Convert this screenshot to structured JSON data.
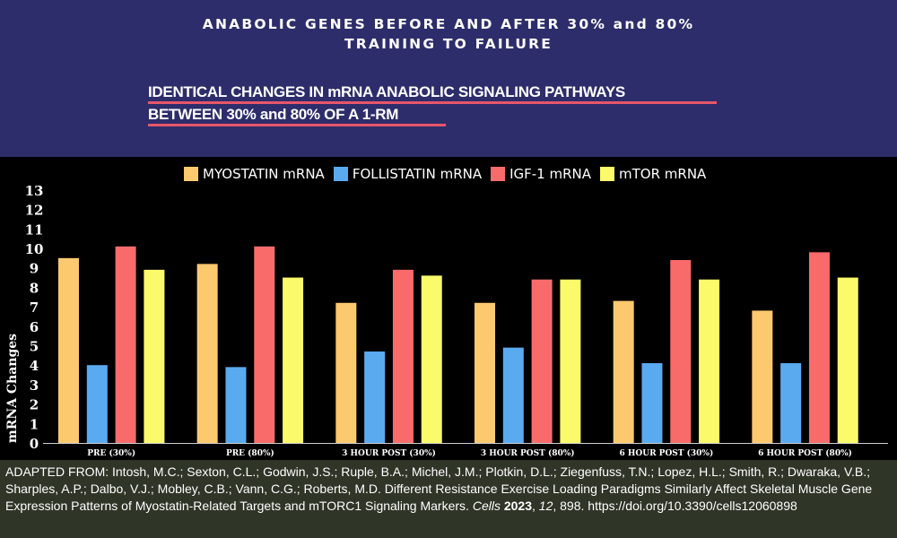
{
  "header": {
    "title_line1": "ANABOLIC GENES BEFORE AND AFTER 30% and 80%",
    "title_line2": "TRAINING TO FAILURE",
    "subtitle_line1": "IDENTICAL CHANGES IN mRNA ANABOLIC SIGNALING PATHWAYS",
    "subtitle_line2": "BETWEEN 30% and 80% OF A 1-RM"
  },
  "chart_data": {
    "type": "bar",
    "ylabel": "mRNA Changes",
    "ylim": [
      0,
      13
    ],
    "yticks": [
      0,
      1,
      2,
      3,
      4,
      5,
      6,
      7,
      8,
      9,
      10,
      11,
      12,
      13
    ],
    "categories": [
      "PRE (30%)",
      "PRE (80%)",
      "3 HOUR POST (30%)",
      "3 HOUR POST (80%)",
      "6 HOUR POST (30%)",
      "6 HOUR POST (80%)"
    ],
    "series": [
      {
        "name": "MYOSTATIN mRNA",
        "color": "#fdc96e",
        "values": [
          9.5,
          9.2,
          7.2,
          7.2,
          7.3,
          6.8
        ]
      },
      {
        "name": "FOLLISTATIN mRNA",
        "color": "#5aaaf0",
        "values": [
          4.0,
          3.9,
          4.7,
          4.9,
          4.1,
          4.1
        ]
      },
      {
        "name": "IGF-1 mRNA",
        "color": "#f96b6b",
        "values": [
          10.1,
          10.1,
          8.9,
          8.4,
          9.4,
          9.8
        ]
      },
      {
        "name": "mTOR mRNA",
        "color": "#fafa6a",
        "values": [
          8.9,
          8.5,
          8.6,
          8.4,
          8.4,
          8.5
        ]
      }
    ],
    "legend_position": "top",
    "grid": false
  },
  "footer": {
    "citation_prefix": "ADAPTED FROM:  Intosh, M.C.; Sexton, C.L.; Godwin, J.S.; Ruple, B.A.; Michel, J.M.; Plotkin, D.L.; Ziegenfuss, T.N.; Lopez, H.L.; Smith, R.; Dwaraka, V.B.; Sharples, A.P.; Dalbo, V.J.; Mobley, C.B.; Vann, C.G.; Roberts, M.D. Different Resistance Exercise Loading Paradigms Similarly Affect Skeletal Muscle Gene Expression Patterns of Myostatin-Related Targets and mTORC1 Signaling Markers. ",
    "journal": "Cells",
    "space1": " ",
    "year": "2023",
    "comma1": ", ",
    "volume": "12",
    "pages": ", 898. ",
    "doi": "https://doi.org/10.3390/cells12060898"
  }
}
